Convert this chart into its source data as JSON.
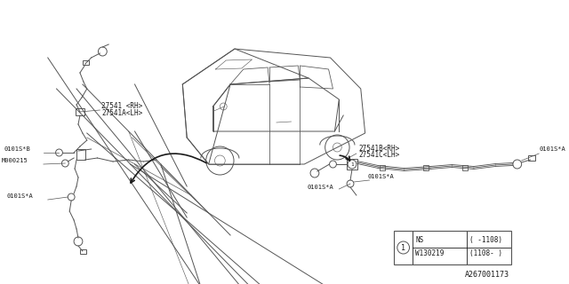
{
  "bg_color": "#ffffff",
  "line_color": "#555555",
  "diagram_id": "A267001173",
  "table": {
    "rows": [
      {
        "col1": "NS",
        "col2": "( -1108)"
      },
      {
        "col1": "W130219",
        "col2": "(1108- )"
      }
    ]
  },
  "labels_left": {
    "part1": "27541 <RH>",
    "part2": "27541A<LH>",
    "bolt1": "0101S*B",
    "bolt2": "M000215",
    "bolt3": "0101S*A"
  },
  "labels_right": {
    "part1": "27541B<RH>",
    "part2": "27541C<LH>",
    "bolt1": "0101S*A",
    "bolt2": "0101S*A",
    "bolt3": "0101S*A"
  }
}
